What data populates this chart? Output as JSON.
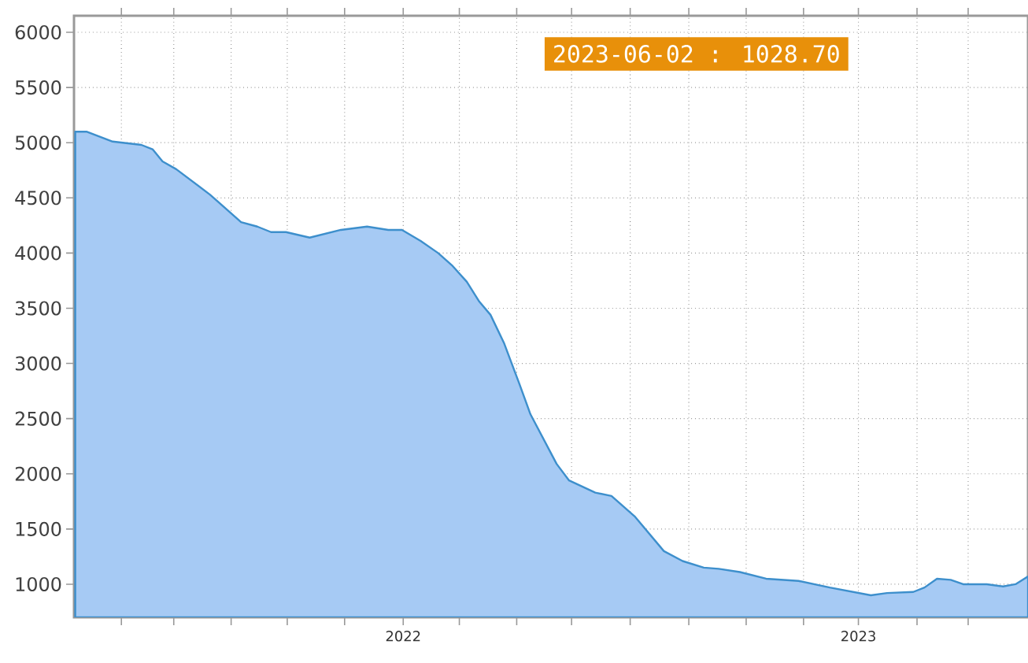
{
  "chart_data": {
    "type": "area",
    "x": [
      "2021-04-13",
      "2021-04-22",
      "2021-05-13",
      "2021-06-05",
      "2021-06-14",
      "2021-06-22",
      "2021-07-03",
      "2021-07-30",
      "2021-08-24",
      "2021-09-06",
      "2021-09-17",
      "2021-09-29",
      "2021-10-18",
      "2021-11-12",
      "2021-12-03",
      "2021-12-20",
      "2021-12-31",
      "2022-01-15",
      "2022-01-29",
      "2022-02-09",
      "2022-02-21",
      "2022-03-03",
      "2022-03-12",
      "2022-03-23",
      "2022-04-04",
      "2022-04-13",
      "2022-05-04",
      "2022-05-14",
      "2022-06-04",
      "2022-06-17",
      "2022-07-06",
      "2022-07-29",
      "2022-08-13",
      "2022-08-30",
      "2022-09-11",
      "2022-09-28",
      "2022-10-19",
      "2022-11-14",
      "2022-12-09",
      "2023-01-11",
      "2023-01-24",
      "2023-02-14",
      "2023-02-23",
      "2023-03-05",
      "2023-03-16",
      "2023-03-26",
      "2023-04-14",
      "2023-04-27",
      "2023-05-07",
      "2023-05-17"
    ],
    "series": [
      {
        "color": "#a6caf4",
        "values": [
          5100,
          5100,
          5010,
          4980,
          4940,
          4830,
          4760,
          4530,
          4280,
          4240,
          4190,
          4190,
          4140,
          4210,
          4240,
          4210,
          4210,
          4110,
          4000,
          3890,
          3740,
          3560,
          3440,
          3180,
          2820,
          2540,
          2090,
          1940,
          1830,
          1800,
          1610,
          1300,
          1210,
          1150,
          1140,
          1110,
          1050,
          1030,
          970,
          900,
          920,
          930,
          970,
          1050,
          1040,
          1000,
          1000,
          980,
          1000,
          1070
        ]
      }
    ],
    "xlim": [
      "2021-04-12",
      "2023-05-17"
    ],
    "xticks": [
      {
        "value": "2021-05-20",
        "label": null
      },
      {
        "value": "2021-07-01",
        "label": null
      },
      {
        "value": "2021-08-16",
        "label": null
      },
      {
        "value": "2021-09-30",
        "label": null
      },
      {
        "value": "2021-11-15",
        "label": null
      },
      {
        "value": "2022-01-01",
        "label": "2022"
      },
      {
        "value": "2022-02-15",
        "label": null
      },
      {
        "value": "2022-04-02",
        "label": null
      },
      {
        "value": "2022-05-16",
        "label": null
      },
      {
        "value": "2022-07-02",
        "label": null
      },
      {
        "value": "2022-08-18",
        "label": null
      },
      {
        "value": "2022-10-03",
        "label": null
      },
      {
        "value": "2022-11-18",
        "label": null
      },
      {
        "value": "2023-01-01",
        "label": "2023"
      },
      {
        "value": "2023-02-17",
        "label": null
      },
      {
        "value": "2023-03-30",
        "label": null
      }
    ],
    "ylim": [
      700,
      6150
    ],
    "yticks": [
      1000,
      1500,
      2000,
      2500,
      3000,
      3500,
      4000,
      4500,
      5000,
      5500,
      6000
    ],
    "grid": true,
    "annotations": [
      "2023-06-02 : 1028.70"
    ]
  }
}
